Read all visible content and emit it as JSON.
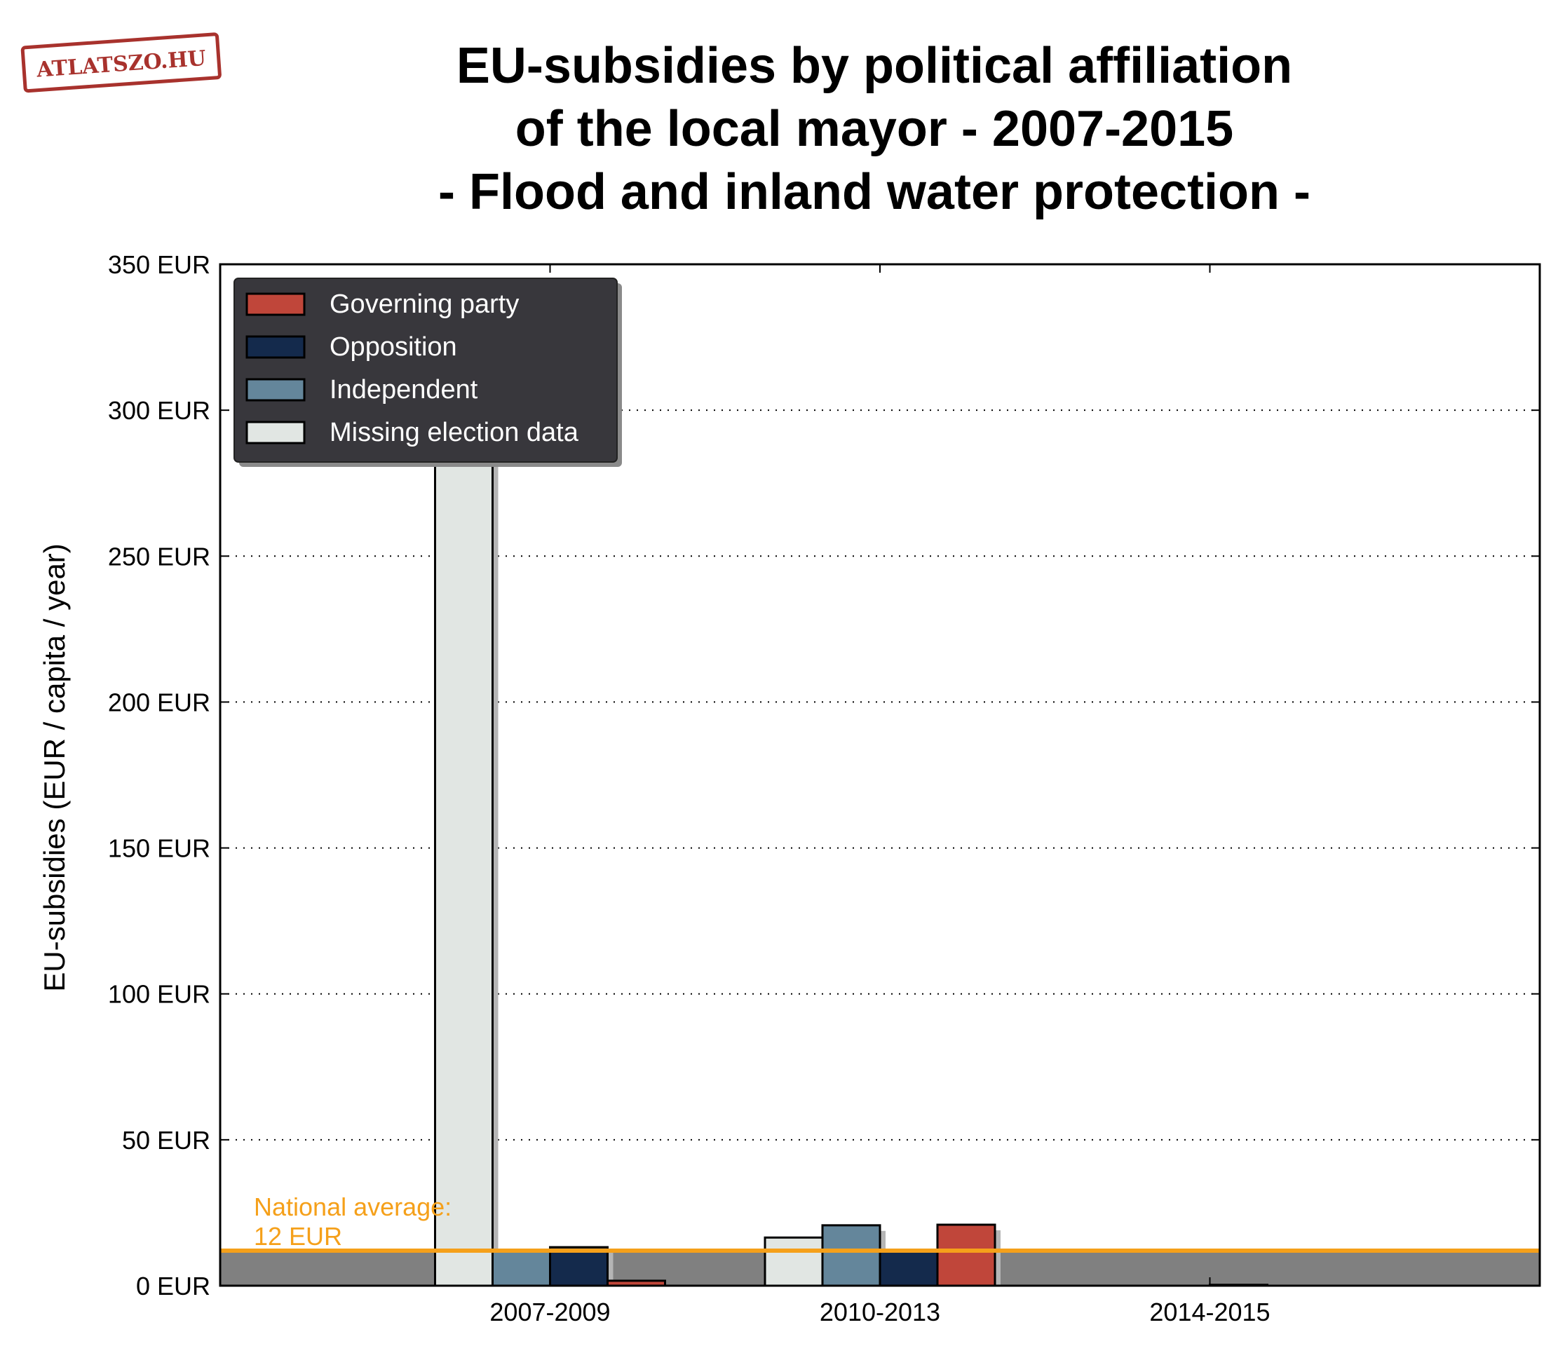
{
  "logo": {
    "text": "ATLATSZO.HU",
    "color": "#a8322d"
  },
  "chart_data": {
    "type": "bar",
    "title_lines": [
      "EU-subsidies by political affiliation",
      "of the local mayor - 2007-2015",
      "- Flood and inland water protection -"
    ],
    "xlabel": "",
    "ylabel": "EU-subsidies (EUR / capita / year)",
    "ylim": [
      0,
      350
    ],
    "yticks": [
      0,
      50,
      100,
      150,
      200,
      250,
      300,
      350
    ],
    "ytick_labels": [
      "0 EUR",
      "50 EUR",
      "100 EUR",
      "150 EUR",
      "200 EUR",
      "250 EUR",
      "300 EUR",
      "350 EUR"
    ],
    "grid": "horizontal dotted",
    "legend_position": "top-left",
    "categories": [
      "2007-2009",
      "2010-2013",
      "2014-2015"
    ],
    "series": [
      {
        "name": "Missing election data",
        "color": "#e1e6e3",
        "values": [
          300,
          16.5,
          0
        ]
      },
      {
        "name": "Independent",
        "color": "#64869b",
        "values": [
          11.8,
          20.7,
          0
        ]
      },
      {
        "name": "Opposition",
        "color": "#142a4c",
        "values": [
          13.2,
          11.8,
          0.3
        ]
      },
      {
        "name": "Governing party",
        "color": "#c0463a",
        "values": [
          1.7,
          20.9,
          0
        ]
      }
    ],
    "legend_order": [
      "Governing party",
      "Opposition",
      "Independent",
      "Missing election data"
    ],
    "national_average": {
      "value": 12,
      "label_line1": "National average:",
      "label_line2": "12 EUR",
      "color": "#f5a01a",
      "fill_color": "#808080"
    },
    "legend_background": "#38373c"
  }
}
